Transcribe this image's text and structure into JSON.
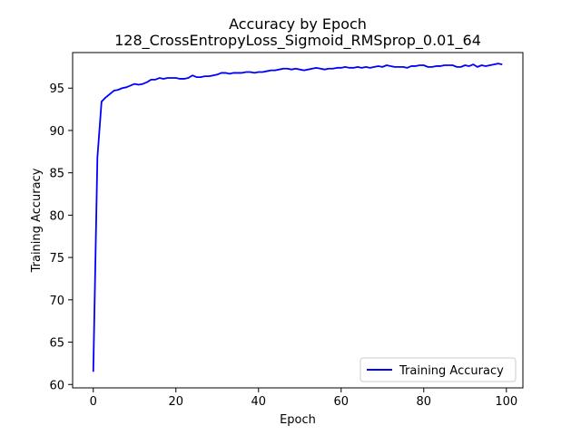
{
  "chart_data": {
    "type": "line",
    "title": "Accuracy by Epoch",
    "subtitle": "128_CrossEntropyLoss_Sigmoid_RMSprop_0.01_64",
    "xlabel": "Epoch",
    "ylabel": "Training Accuracy",
    "xlim": [
      -5,
      104
    ],
    "ylim": [
      59.6,
      99.2
    ],
    "xticks": [
      0,
      20,
      40,
      60,
      80,
      100
    ],
    "yticks": [
      60,
      65,
      70,
      75,
      80,
      85,
      90,
      95
    ],
    "grid": false,
    "legend_position": "lower-right",
    "series": [
      {
        "name": "Training Accuracy",
        "color": "#0000ff",
        "x": [
          0,
          1,
          2,
          3,
          4,
          5,
          6,
          7,
          8,
          9,
          10,
          11,
          12,
          13,
          14,
          15,
          16,
          17,
          18,
          19,
          20,
          21,
          22,
          23,
          24,
          25,
          26,
          27,
          28,
          29,
          30,
          31,
          32,
          33,
          34,
          35,
          36,
          37,
          38,
          39,
          40,
          41,
          42,
          43,
          44,
          45,
          46,
          47,
          48,
          49,
          50,
          51,
          52,
          53,
          54,
          55,
          56,
          57,
          58,
          59,
          60,
          61,
          62,
          63,
          64,
          65,
          66,
          67,
          68,
          69,
          70,
          71,
          72,
          73,
          74,
          75,
          76,
          77,
          78,
          79,
          80,
          81,
          82,
          83,
          84,
          85,
          86,
          87,
          88,
          89,
          90,
          91,
          92,
          93,
          94,
          95,
          96,
          97,
          98,
          99
        ],
        "values": [
          61.5,
          86.8,
          93.4,
          93.9,
          94.3,
          94.7,
          94.8,
          95.0,
          95.1,
          95.3,
          95.5,
          95.4,
          95.5,
          95.7,
          96.0,
          96.0,
          96.2,
          96.1,
          96.2,
          96.2,
          96.2,
          96.1,
          96.1,
          96.2,
          96.5,
          96.3,
          96.3,
          96.4,
          96.4,
          96.5,
          96.6,
          96.8,
          96.8,
          96.7,
          96.8,
          96.8,
          96.8,
          96.9,
          96.9,
          96.8,
          96.9,
          96.9,
          97.0,
          97.1,
          97.1,
          97.2,
          97.3,
          97.3,
          97.2,
          97.3,
          97.2,
          97.1,
          97.2,
          97.3,
          97.4,
          97.3,
          97.2,
          97.3,
          97.3,
          97.4,
          97.4,
          97.5,
          97.4,
          97.4,
          97.5,
          97.4,
          97.5,
          97.4,
          97.5,
          97.6,
          97.5,
          97.7,
          97.6,
          97.5,
          97.5,
          97.5,
          97.4,
          97.6,
          97.6,
          97.7,
          97.7,
          97.5,
          97.5,
          97.6,
          97.6,
          97.7,
          97.7,
          97.7,
          97.5,
          97.5,
          97.7,
          97.6,
          97.8,
          97.5,
          97.7,
          97.6,
          97.7,
          97.8,
          97.9,
          97.8
        ]
      }
    ]
  }
}
